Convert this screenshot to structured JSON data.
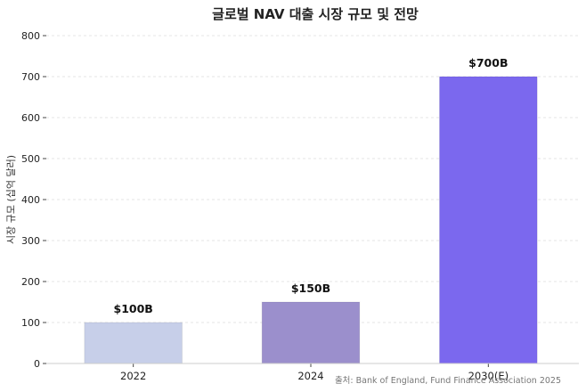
{
  "chart_data": {
    "type": "bar",
    "title": "글로벌 NAV 대출 시장 규모 및 전망",
    "xlabel": "",
    "ylabel": "시장 규모 (십억 달러)",
    "categories": [
      "2022",
      "2024",
      "2030(E)"
    ],
    "values": [
      100,
      150,
      700
    ],
    "data_labels": [
      "$100B",
      "$150B",
      "$700B"
    ],
    "colors": [
      "#c7cfe9",
      "#9b8fcc",
      "#7b68ee"
    ],
    "ylim": [
      0,
      800
    ],
    "yticks": [
      0,
      100,
      200,
      300,
      400,
      500,
      600,
      700,
      800
    ],
    "grid": true,
    "source": "출처: Bank of England, Fund Finance Association 2025"
  }
}
